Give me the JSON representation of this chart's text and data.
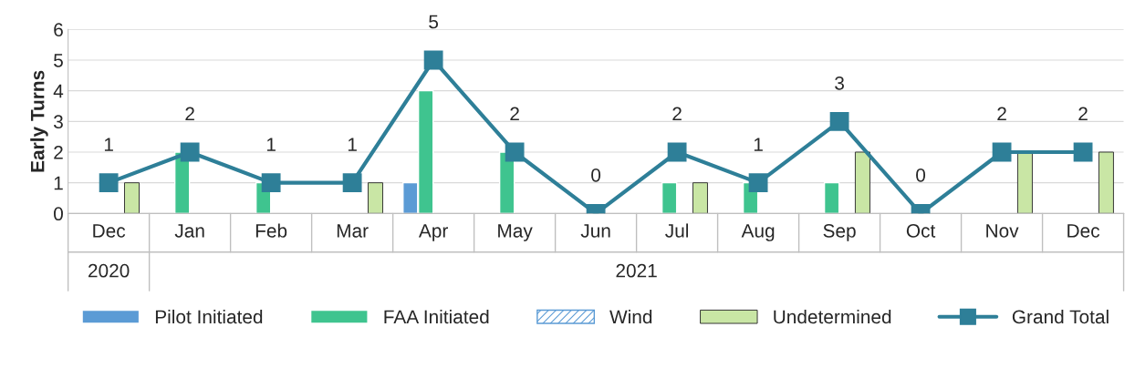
{
  "chart_data": {
    "type": "bar",
    "ylabel": "Early Turns",
    "categories": [
      "Dec",
      "Jan",
      "Feb",
      "Mar",
      "Apr",
      "May",
      "Jun",
      "Jul",
      "Aug",
      "Sep",
      "Oct",
      "Nov",
      "Dec"
    ],
    "series": [
      {
        "name": "Pilot Initiated",
        "color": "#5b9bd5",
        "values": [
          null,
          null,
          null,
          null,
          1,
          null,
          null,
          null,
          null,
          null,
          null,
          null,
          null
        ]
      },
      {
        "name": "FAA Initiated",
        "color": "#3fc48f",
        "values": [
          null,
          2,
          1,
          null,
          4,
          2,
          null,
          1,
          1,
          1,
          null,
          null,
          null
        ]
      },
      {
        "name": "Wind",
        "color": "#5b9bd5",
        "values": [
          null,
          null,
          null,
          null,
          null,
          null,
          null,
          null,
          null,
          null,
          null,
          null,
          null
        ]
      },
      {
        "name": "Undetermined",
        "color": "#c9e6a5",
        "values": [
          1,
          null,
          null,
          1,
          null,
          null,
          null,
          1,
          null,
          2,
          null,
          2,
          2
        ]
      },
      {
        "name": "Grand Total",
        "type": "line",
        "color": "#2e7f98",
        "marker": "square",
        "line_style": "solid",
        "values": [
          1,
          2,
          1,
          1,
          5,
          2,
          0,
          2,
          1,
          3,
          0,
          2,
          2
        ],
        "value_labels": [
          "1",
          "2",
          "1",
          "1",
          "5",
          "2",
          "0",
          "2",
          "1",
          "3",
          "0",
          "2",
          "2"
        ]
      }
    ],
    "annotations": [
      "2020",
      "2021"
    ],
    "ylim": [
      0,
      6
    ],
    "yticks": [
      0,
      1,
      2,
      3,
      4,
      5,
      6
    ],
    "grid": "y",
    "legend": "bottom"
  }
}
